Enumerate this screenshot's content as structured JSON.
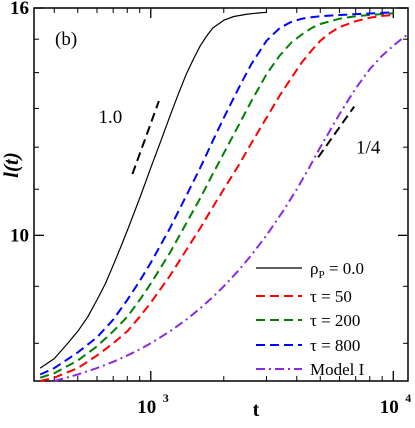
{
  "chart_data": {
    "type": "line",
    "panel_label": "(b)",
    "xlabel": "t",
    "ylabel": "l(t)",
    "xscale": "log",
    "yscale": "log",
    "xlim": [
      330,
      11500
    ],
    "ylim": [
      7.4,
      16
    ],
    "x_ticks": [
      {
        "value": 1000,
        "base": "10",
        "exp": "3"
      },
      {
        "value": 10000,
        "base": "10",
        "exp": "4"
      }
    ],
    "y_ticks": [
      {
        "value": 10,
        "label": "10"
      },
      {
        "value": 16,
        "label": "16"
      }
    ],
    "series": [
      {
        "name": "ρP = 0.0",
        "name_main": "ρ",
        "name_sub": "P",
        "name_rest": " = 0.0",
        "color": "#000000",
        "dash": "solid",
        "x": [
          350,
          400,
          450,
          500,
          550,
          600,
          650,
          700,
          750,
          800,
          850,
          900,
          950,
          1000,
          1100,
          1200,
          1300,
          1400,
          1500,
          1600,
          1700,
          1800,
          2000,
          2200,
          2500,
          2800,
          3000
        ],
        "y": [
          7.6,
          7.75,
          7.98,
          8.2,
          8.45,
          8.75,
          9.05,
          9.4,
          9.75,
          10.1,
          10.45,
          10.8,
          11.15,
          11.5,
          12.15,
          12.8,
          13.4,
          13.95,
          14.4,
          14.8,
          15.1,
          15.35,
          15.6,
          15.72,
          15.8,
          15.84,
          15.86
        ]
      },
      {
        "name": "τ = 50",
        "color": "#ff0000",
        "dash": "dashed",
        "x": [
          350,
          400,
          500,
          600,
          700,
          800,
          900,
          1000,
          1200,
          1400,
          1600,
          1800,
          2000,
          2300,
          2600,
          3000,
          3400,
          3800,
          4200,
          4600,
          5000,
          5500,
          6000,
          7000,
          8000,
          9000,
          10000
        ],
        "y": [
          7.4,
          7.45,
          7.6,
          7.8,
          8.0,
          8.2,
          8.45,
          8.7,
          9.2,
          9.7,
          10.15,
          10.6,
          11.0,
          11.55,
          12.1,
          12.75,
          13.35,
          13.85,
          14.3,
          14.65,
          14.95,
          15.2,
          15.38,
          15.57,
          15.68,
          15.74,
          15.77
        ]
      },
      {
        "name": "τ = 200",
        "color": "#008000",
        "dash": "dashed",
        "x": [
          350,
          400,
          500,
          600,
          700,
          800,
          900,
          1000,
          1200,
          1400,
          1600,
          1800,
          2000,
          2300,
          2600,
          3000,
          3400,
          3800,
          4200,
          4600,
          5000,
          6000,
          7000,
          8000,
          9000,
          10000
        ],
        "y": [
          7.45,
          7.52,
          7.72,
          7.95,
          8.2,
          8.45,
          8.75,
          9.05,
          9.65,
          10.25,
          10.8,
          11.35,
          11.85,
          12.55,
          13.2,
          13.95,
          14.5,
          14.9,
          15.15,
          15.35,
          15.48,
          15.65,
          15.73,
          15.77,
          15.8,
          15.83
        ]
      },
      {
        "name": "τ = 800",
        "color": "#0000ff",
        "dash": "dashed",
        "x": [
          350,
          400,
          500,
          600,
          700,
          800,
          900,
          1000,
          1200,
          1400,
          1600,
          1800,
          2000,
          2300,
          2600,
          3000,
          3400,
          3800,
          4200,
          4600,
          5000,
          6000,
          7000,
          8000,
          9000,
          10000
        ],
        "y": [
          7.5,
          7.6,
          7.85,
          8.1,
          8.4,
          8.75,
          9.1,
          9.45,
          10.15,
          10.85,
          11.5,
          12.15,
          12.75,
          13.55,
          14.25,
          14.95,
          15.35,
          15.55,
          15.65,
          15.7,
          15.73,
          15.77,
          15.8,
          15.82,
          15.84,
          15.86
        ]
      },
      {
        "name": "Model I",
        "color": "#8a2be2",
        "dash": "dashdot",
        "x": [
          400,
          500,
          600,
          700,
          800,
          900,
          1000,
          1200,
          1400,
          1600,
          1800,
          2000,
          2300,
          2600,
          3000,
          3500,
          4000,
          4500,
          5000,
          6000,
          7000,
          8000,
          9000,
          10000,
          11000,
          11500
        ],
        "y": [
          7.4,
          7.5,
          7.6,
          7.7,
          7.8,
          7.9,
          8.0,
          8.2,
          8.4,
          8.6,
          8.8,
          9.0,
          9.3,
          9.6,
          10.0,
          10.5,
          11.0,
          11.5,
          12.0,
          12.85,
          13.55,
          14.1,
          14.5,
          14.8,
          15.05,
          15.15
        ]
      }
    ],
    "slope_guides": [
      {
        "label": "1.0",
        "x": [
          840,
          1080
        ],
        "y": [
          11.35,
          13.2
        ]
      },
      {
        "label": "1/4",
        "x": [
          4900,
          6900
        ],
        "y": [
          11.75,
          13.05
        ]
      }
    ],
    "legend_position": "bottom-right",
    "grid": false
  }
}
